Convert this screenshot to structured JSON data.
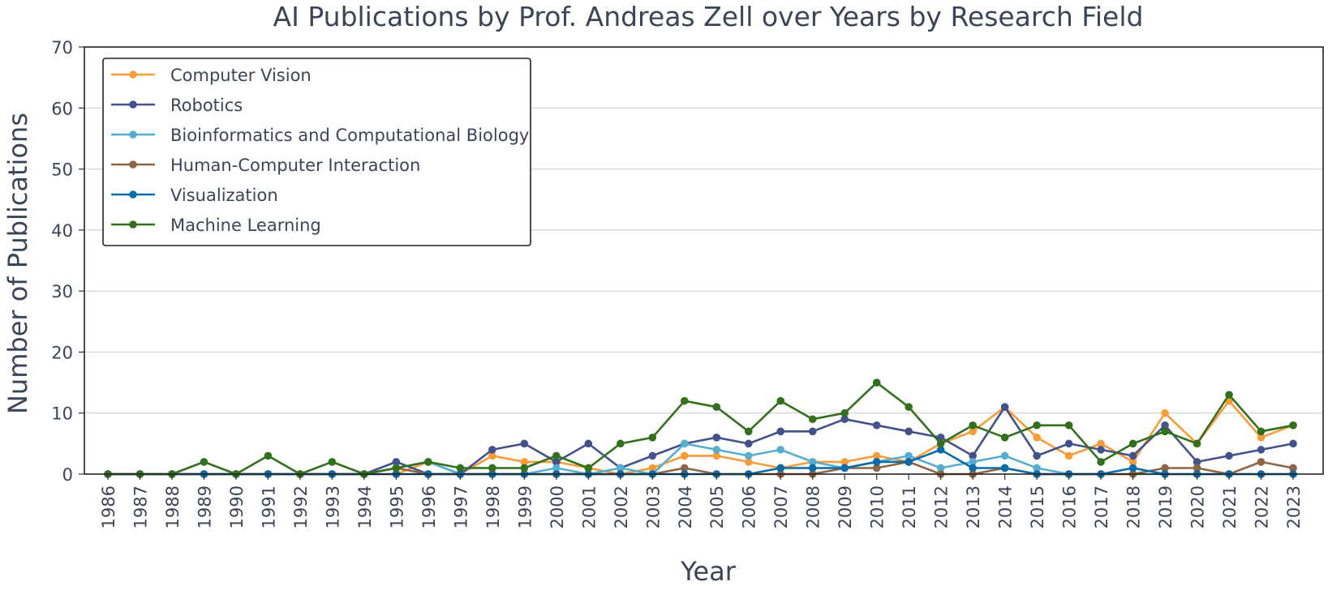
{
  "chart_data": {
    "type": "line",
    "title": "AI Publications by Prof. Andreas Zell over Years by Research Field",
    "xlabel": "Year",
    "ylabel": "Number of Publications",
    "ylim": [
      0,
      70
    ],
    "yticks": [
      0,
      10,
      20,
      30,
      40,
      50,
      60,
      70
    ],
    "grid": "horizontal",
    "legend": "top-left",
    "x": [
      "1986",
      "1987",
      "1988",
      "1989",
      "1990",
      "1991",
      "1992",
      "1993",
      "1994",
      "1995",
      "1996",
      "1997",
      "1998",
      "1999",
      "2000",
      "2001",
      "2002",
      "2003",
      "2004",
      "2005",
      "2006",
      "2007",
      "2008",
      "2009",
      "2010",
      "2011",
      "2012",
      "2013",
      "2014",
      "2015",
      "2016",
      "2017",
      "2018",
      "2019",
      "2020",
      "2021",
      "2022",
      "2023"
    ],
    "series": [
      {
        "name": "Computer Vision",
        "color": "#f89c3a",
        "values": [
          0,
          0,
          0,
          0,
          0,
          0,
          0,
          0,
          0,
          0,
          2,
          0,
          3,
          2,
          2,
          1,
          0,
          1,
          3,
          3,
          2,
          1,
          2,
          2,
          3,
          2,
          5,
          7,
          11,
          6,
          3,
          5,
          2,
          10,
          5,
          12,
          6,
          8
        ]
      },
      {
        "name": "Robotics",
        "color": "#44528a",
        "values": [
          0,
          0,
          0,
          0,
          0,
          0,
          0,
          0,
          0,
          2,
          0,
          0,
          4,
          5,
          2,
          5,
          1,
          3,
          5,
          6,
          5,
          7,
          7,
          9,
          8,
          7,
          6,
          3,
          11,
          3,
          5,
          4,
          3,
          8,
          2,
          3,
          4,
          5
        ]
      },
      {
        "name": "Bioinformatics and Computational Biology",
        "color": "#56aecf",
        "values": [
          0,
          0,
          0,
          0,
          0,
          0,
          0,
          0,
          0,
          1,
          2,
          0,
          0,
          0,
          1,
          0,
          1,
          0,
          5,
          4,
          3,
          4,
          2,
          1,
          2,
          3,
          1,
          2,
          3,
          1,
          0,
          0,
          0,
          0,
          0,
          0,
          0,
          0
        ]
      },
      {
        "name": "Human-Computer Interaction",
        "color": "#8c6544",
        "values": [
          0,
          0,
          0,
          0,
          0,
          0,
          0,
          0,
          0,
          1,
          0,
          0,
          0,
          0,
          0,
          0,
          0,
          0,
          1,
          0,
          0,
          0,
          0,
          1,
          1,
          2,
          0,
          0,
          1,
          0,
          0,
          0,
          0,
          1,
          1,
          0,
          2,
          1
        ]
      },
      {
        "name": "Visualization",
        "color": "#0b6aa8",
        "values": [
          0,
          0,
          0,
          0,
          0,
          0,
          0,
          0,
          0,
          0,
          0,
          0,
          0,
          0,
          0,
          0,
          0,
          0,
          0,
          0,
          0,
          1,
          1,
          1,
          2,
          2,
          4,
          1,
          1,
          0,
          0,
          0,
          1,
          0,
          0,
          0,
          0,
          0
        ]
      },
      {
        "name": "Machine Learning",
        "color": "#33701e",
        "values": [
          0,
          0,
          0,
          2,
          0,
          3,
          0,
          2,
          0,
          1,
          2,
          1,
          1,
          1,
          3,
          1,
          5,
          6,
          12,
          11,
          7,
          12,
          9,
          10,
          15,
          11,
          5,
          8,
          6,
          8,
          8,
          2,
          5,
          7,
          5,
          13,
          7,
          8
        ]
      }
    ]
  }
}
